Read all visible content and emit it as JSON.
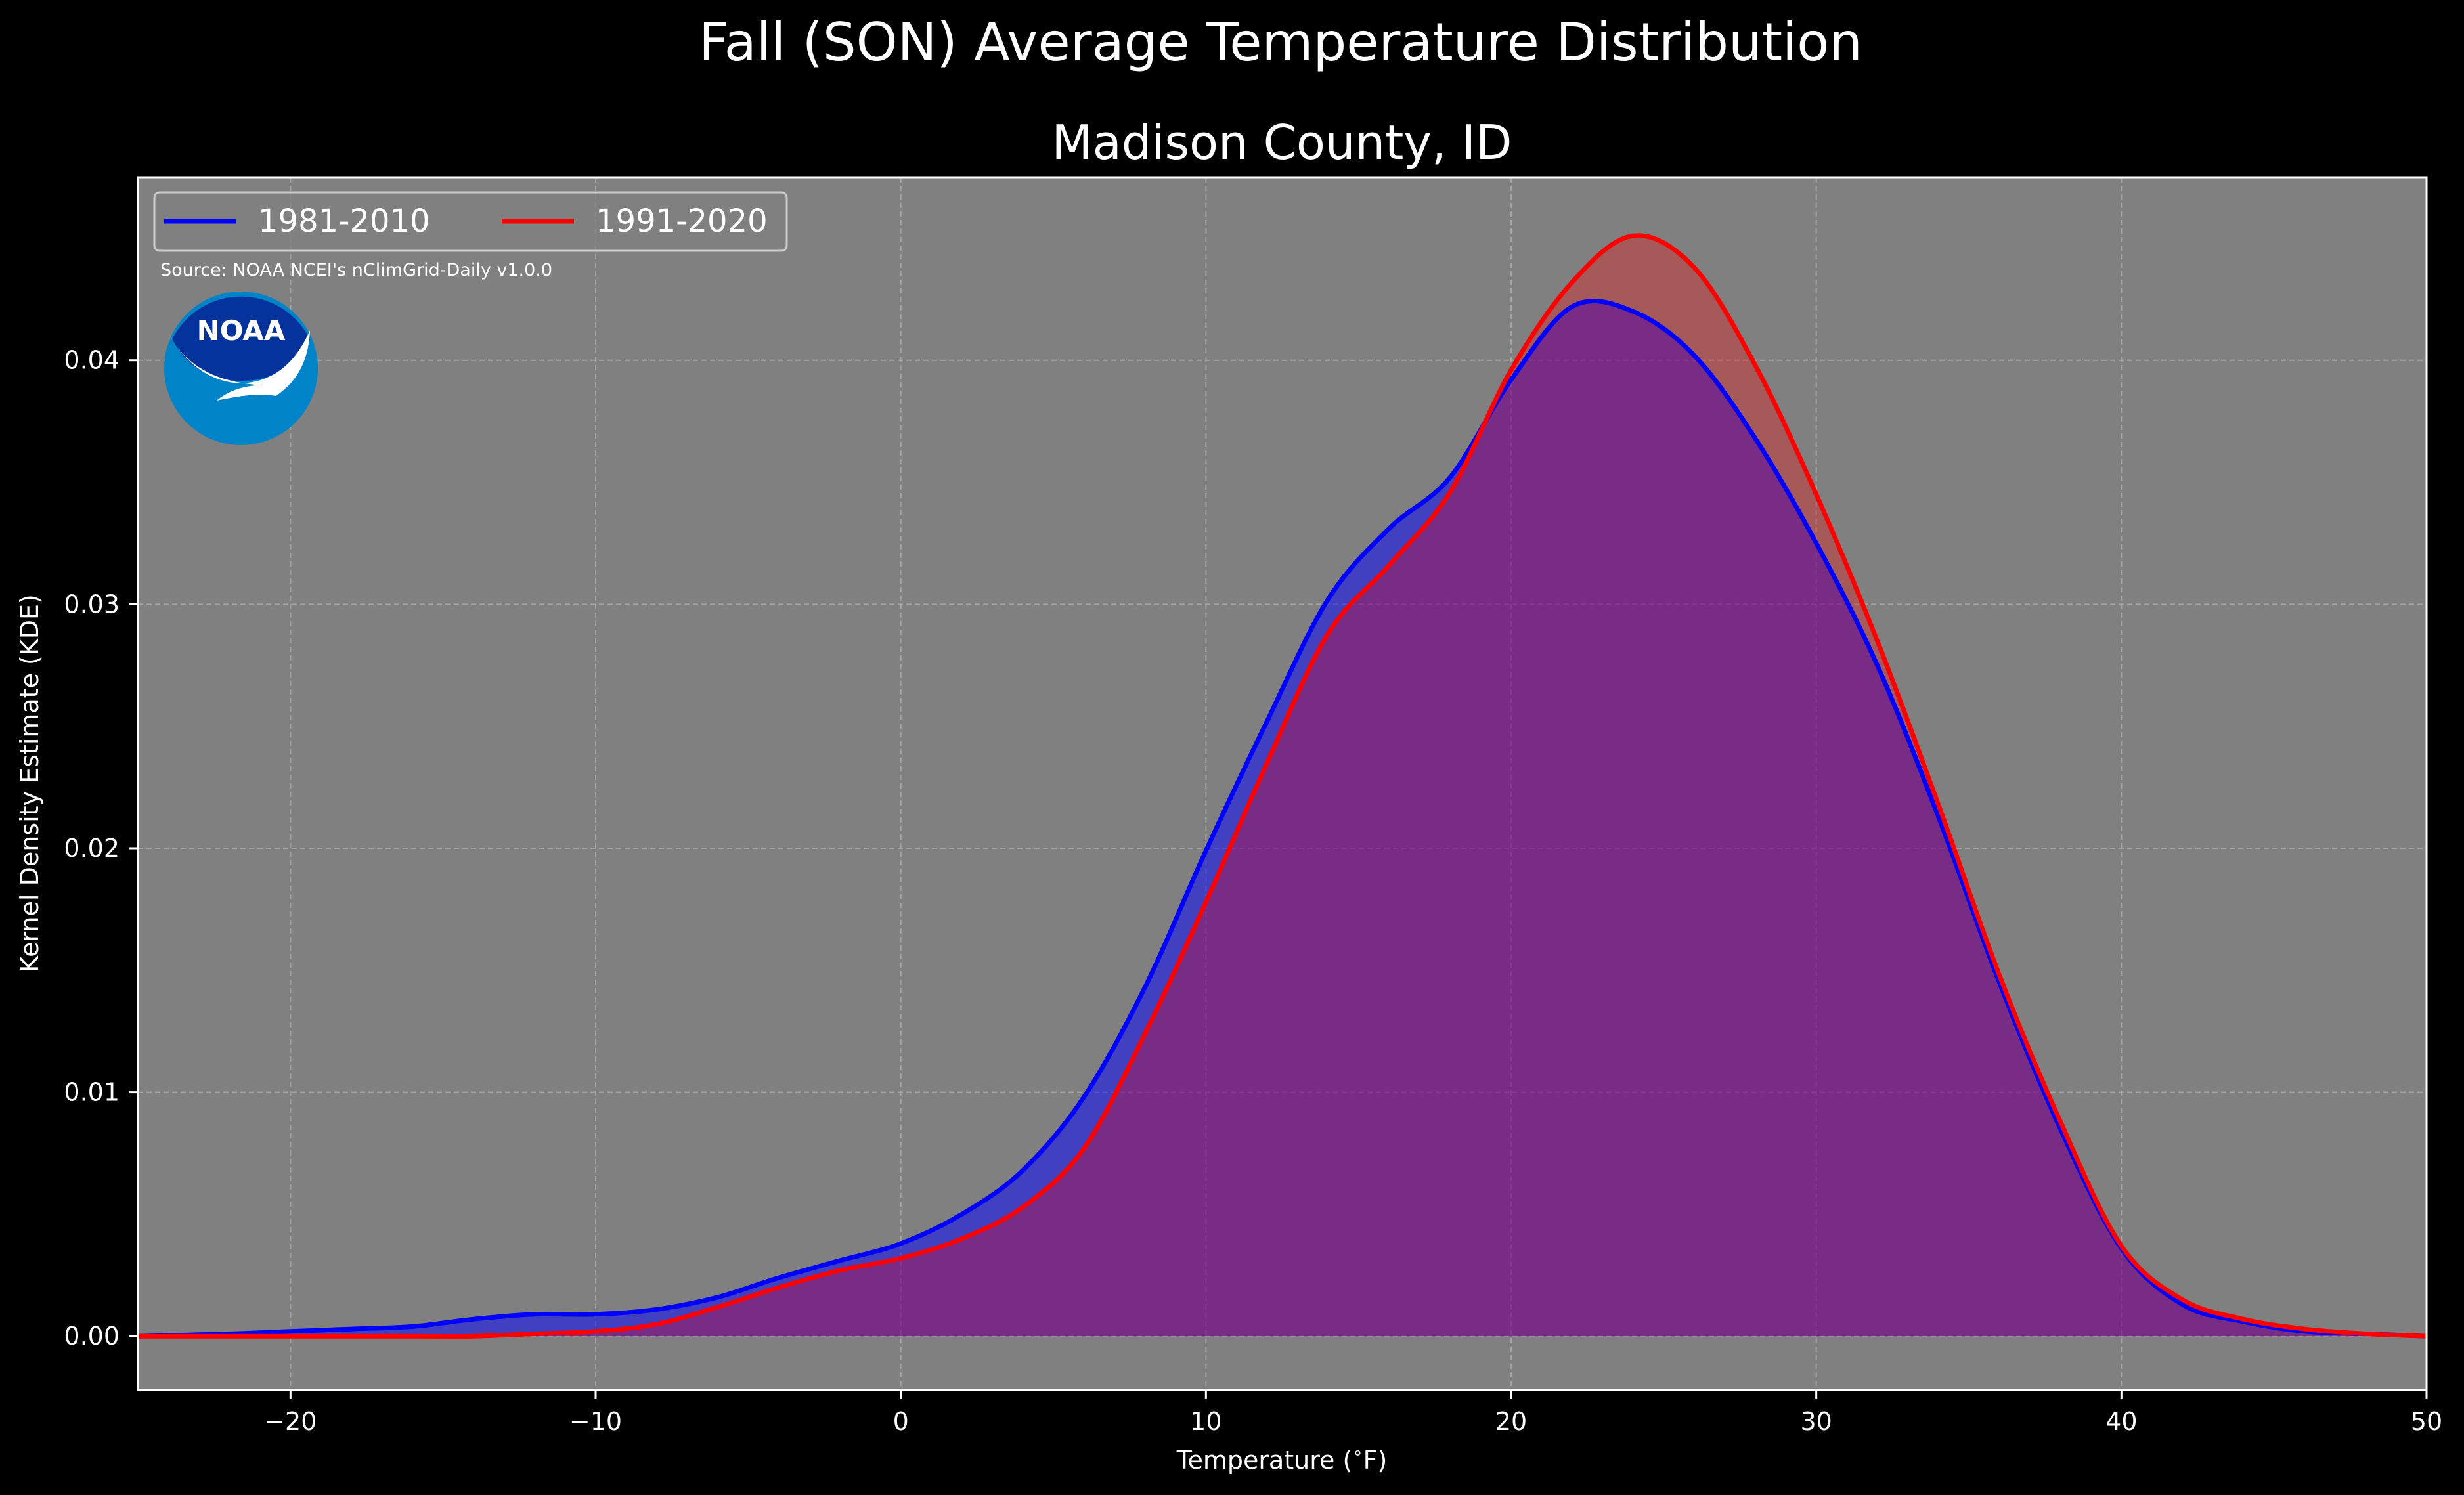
{
  "chart_data": {
    "type": "area",
    "title": "Fall (SON) Average Temperature Distribution",
    "subtitle": "Madison County, ID",
    "xlabel": "Temperature ($^\\circ$F)",
    "ylabel": "Kernel Density Estimate (KDE)",
    "xlim": [
      -25,
      50
    ],
    "ylim": [
      -0.0022,
      0.0475
    ],
    "x_ticks": [
      -20,
      -10,
      0,
      10,
      20,
      30,
      40,
      50
    ],
    "x_tick_labels": [
      "−20",
      "−10",
      "0",
      "10",
      "20",
      "30",
      "40",
      "50"
    ],
    "y_ticks": [
      0.0,
      0.01,
      0.02,
      0.03,
      0.04
    ],
    "y_tick_labels": [
      "0.00",
      "0.01",
      "0.02",
      "0.03",
      "0.04"
    ],
    "grid": true,
    "legend": {
      "placement": "top-left",
      "columns": 2
    },
    "source": "Source: NOAA NCEI's nClimGrid-Daily v1.0.0",
    "logo_text": "NOAA",
    "x": [
      -25,
      -22,
      -20,
      -18,
      -16,
      -14,
      -12,
      -10,
      -8,
      -6,
      -4,
      -2,
      0,
      2,
      4,
      6,
      8,
      10,
      12,
      14,
      16,
      18,
      20,
      22,
      24,
      26,
      28,
      30,
      32,
      34,
      36,
      38,
      40,
      42,
      44,
      46,
      48,
      50
    ],
    "series": [
      {
        "name": "1981-2010",
        "color": "#0000ff",
        "fill": "rgba(0,0,255,0.5)",
        "values": [
          0.0,
          0.0001,
          0.0002,
          0.0003,
          0.0004,
          0.0007,
          0.0009,
          0.0009,
          0.0011,
          0.0016,
          0.0024,
          0.0031,
          0.0038,
          0.005,
          0.0068,
          0.0098,
          0.0143,
          0.0199,
          0.0252,
          0.0302,
          0.0331,
          0.0352,
          0.0392,
          0.0422,
          0.042,
          0.0402,
          0.0368,
          0.0325,
          0.0275,
          0.0213,
          0.0145,
          0.0085,
          0.0036,
          0.0013,
          0.0006,
          0.0002,
          0.0001,
          0.0
        ]
      },
      {
        "name": "1991-2020",
        "color": "#ff0000",
        "fill": "rgba(255,0,0,0.3)",
        "values": [
          0.0,
          0.0,
          0.0,
          0.0,
          0.0,
          0.0,
          0.0001,
          0.0002,
          0.0005,
          0.0012,
          0.002,
          0.0027,
          0.0032,
          0.004,
          0.0053,
          0.0077,
          0.0124,
          0.0178,
          0.0235,
          0.0288,
          0.0316,
          0.0346,
          0.0396,
          0.0432,
          0.0451,
          0.0438,
          0.0398,
          0.0345,
          0.0285,
          0.0218,
          0.0148,
          0.0088,
          0.0037,
          0.0015,
          0.0007,
          0.0003,
          0.0001,
          0.0
        ]
      }
    ]
  }
}
